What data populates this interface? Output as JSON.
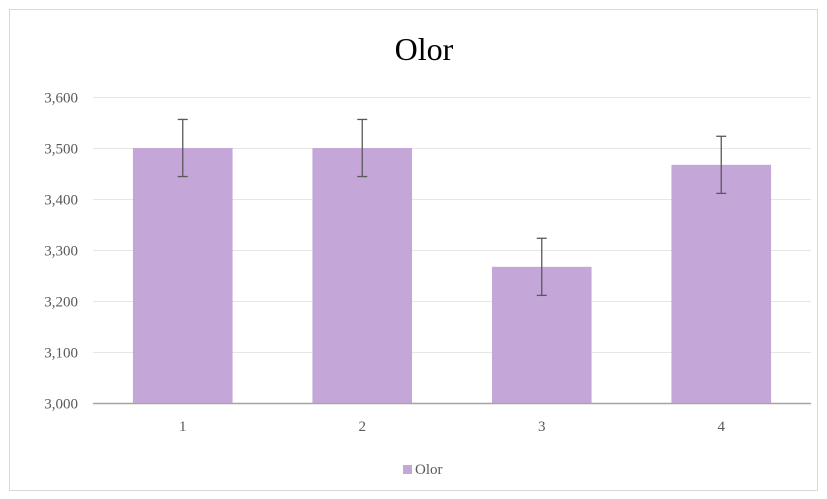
{
  "chart_data": {
    "type": "bar",
    "title": "Olor",
    "xlabel": "",
    "ylabel": "",
    "categories": [
      "1",
      "2",
      "3",
      "4"
    ],
    "series": [
      {
        "name": "Olor",
        "values": [
          3.5,
          3.5,
          3.267,
          3.467
        ],
        "error": [
          0.056,
          0.056,
          0.056,
          0.056
        ]
      }
    ],
    "ylim": [
      3.0,
      3.6
    ],
    "yticks": [
      3.0,
      3.1,
      3.2,
      3.3,
      3.4,
      3.5,
      3.6
    ],
    "ytick_labels": [
      "3,000",
      "3,100",
      "3,200",
      "3,300",
      "3,400",
      "3,500",
      "3,600"
    ],
    "grid": true,
    "legend": "bottom",
    "colors": {
      "bar": "#c4a6d8",
      "error_bar": "#595959",
      "grid": "#e6e6e6",
      "axis": "#a6a6a6",
      "text": "#595959",
      "title": "#000000",
      "border": "#d9d9d9"
    }
  }
}
